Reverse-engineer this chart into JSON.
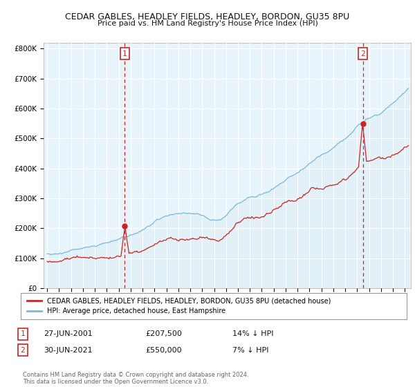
{
  "title": "CEDAR GABLES, HEADLEY FIELDS, HEADLEY, BORDON, GU35 8PU",
  "subtitle": "Price paid vs. HM Land Registry's House Price Index (HPI)",
  "ylabel_ticks": [
    "£0",
    "£100K",
    "£200K",
    "£300K",
    "£400K",
    "£500K",
    "£600K",
    "£700K",
    "£800K"
  ],
  "ytick_values": [
    0,
    100000,
    200000,
    300000,
    400000,
    500000,
    600000,
    700000,
    800000
  ],
  "ylim": [
    0,
    820000
  ],
  "xlim_start": 1994.7,
  "xlim_end": 2025.5,
  "hpi_color": "#7ab8d9",
  "hpi_fill_color": "#ddeef7",
  "price_color": "#cc2222",
  "vline_color": "#cc2222",
  "marker1_x": 2001.49,
  "marker1_y": 207500,
  "marker2_x": 2021.49,
  "marker2_y": 550000,
  "legend_line1": "CEDAR GABLES, HEADLEY FIELDS, HEADLEY, BORDON, GU35 8PU (detached house)",
  "legend_line2": "HPI: Average price, detached house, East Hampshire",
  "annotation1_date": "27-JUN-2001",
  "annotation1_price": "£207,500",
  "annotation1_hpi": "14% ↓ HPI",
  "annotation2_date": "30-JUN-2021",
  "annotation2_price": "£550,000",
  "annotation2_hpi": "7% ↓ HPI",
  "footer": "Contains HM Land Registry data © Crown copyright and database right 2024.\nThis data is licensed under the Open Government Licence v3.0.",
  "background_color": "#ffffff",
  "plot_bg_color": "#e8f4fb",
  "grid_color": "#ffffff"
}
